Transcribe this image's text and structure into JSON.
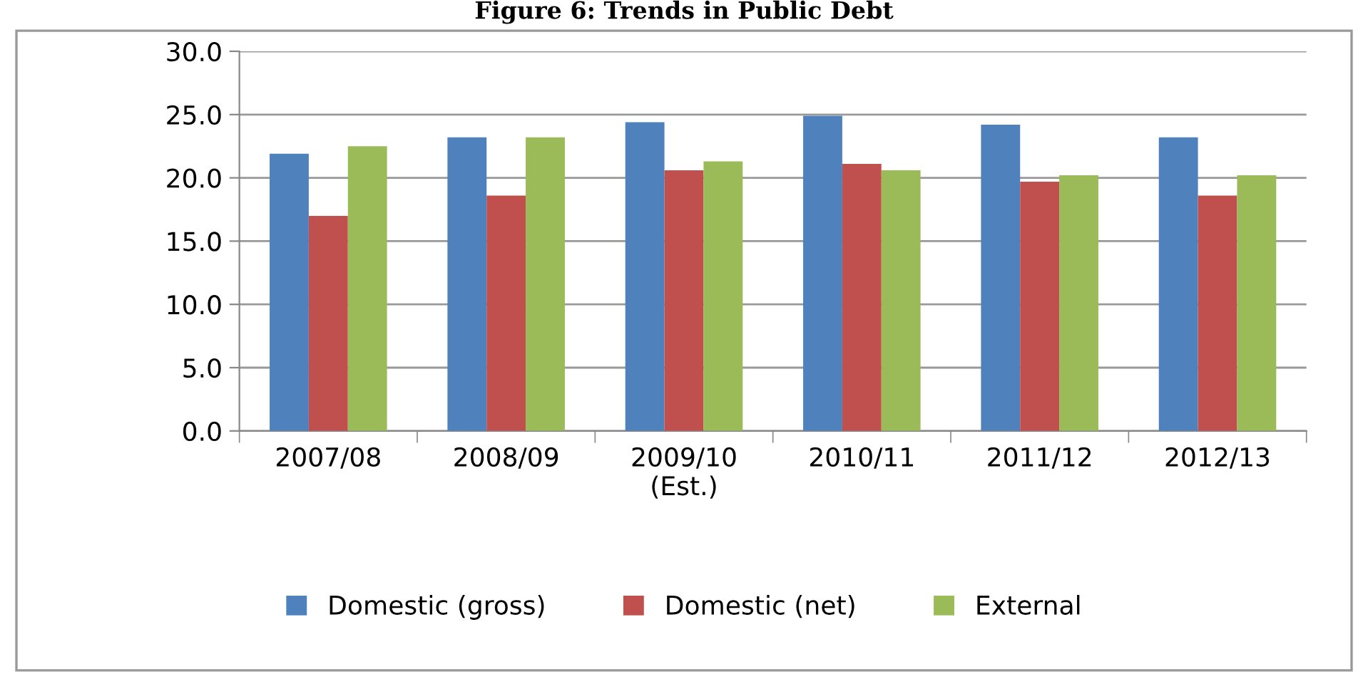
{
  "chart_data": {
    "type": "bar",
    "title": "Figure 6: Trends in Public Debt",
    "categories": [
      "2007/08",
      "2008/09",
      "2009/10\n(Est.)",
      "2010/11",
      "2011/12",
      "2012/13"
    ],
    "series": [
      {
        "name": "Domestic (gross)",
        "color": "#4f81bd",
        "values": [
          21.9,
          23.2,
          24.4,
          24.9,
          24.2,
          23.2
        ]
      },
      {
        "name": "Domestic (net)",
        "color": "#c0504d",
        "values": [
          17.0,
          18.6,
          20.6,
          21.1,
          19.7,
          18.6
        ]
      },
      {
        "name": "External",
        "color": "#9bbb59",
        "values": [
          22.5,
          23.2,
          21.3,
          20.6,
          20.2,
          20.2
        ]
      }
    ],
    "ylim": [
      0,
      30
    ],
    "yticks": [
      {
        "value": 0,
        "label": "0.0"
      },
      {
        "value": 5,
        "label": "5.0"
      },
      {
        "value": 10,
        "label": "10.0"
      },
      {
        "value": 15,
        "label": "15.0"
      },
      {
        "value": 20,
        "label": "20.0"
      },
      {
        "value": 25,
        "label": "25.0"
      },
      {
        "value": 30,
        "label": "30.0"
      }
    ],
    "grid": "y",
    "legend": "bottom"
  }
}
